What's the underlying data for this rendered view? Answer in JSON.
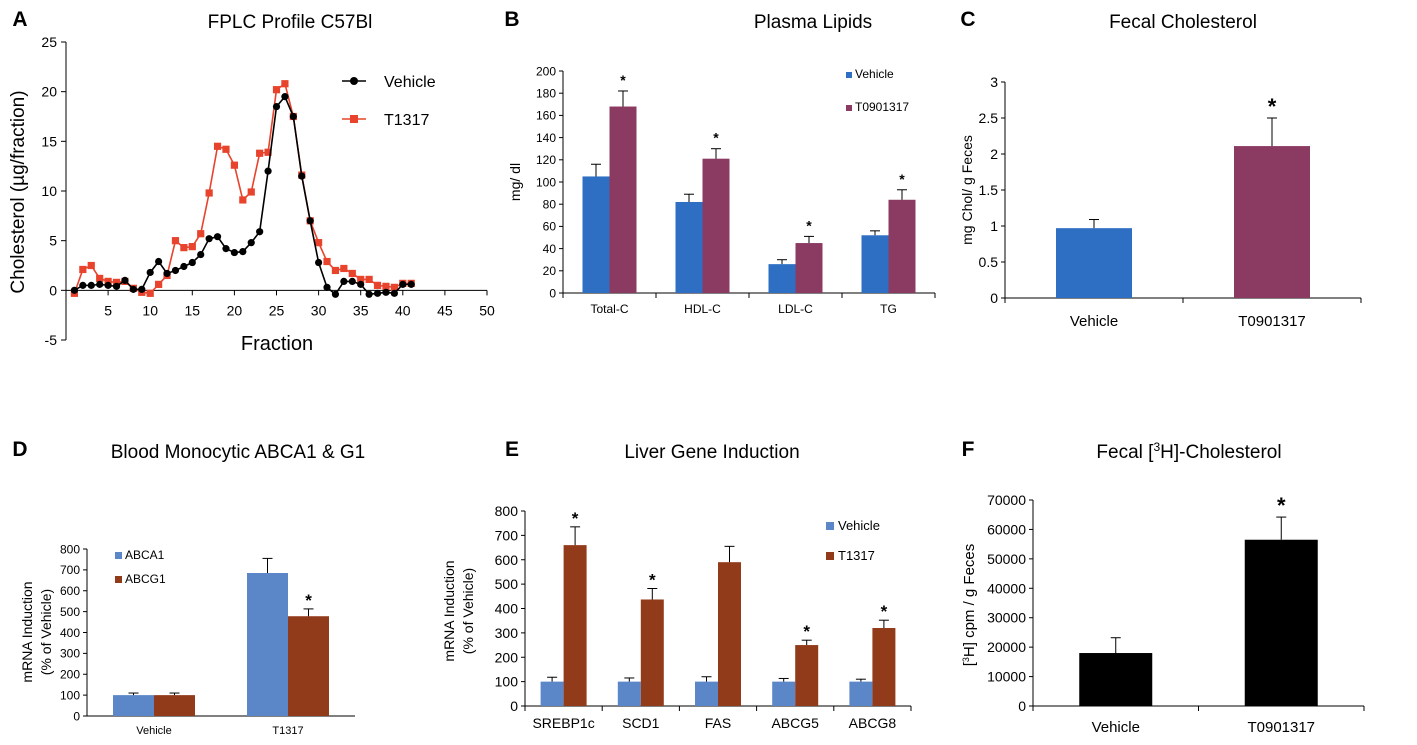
{
  "colors": {
    "black": "#000000",
    "red": "#e8432c",
    "blue": "#2e6fc4",
    "purple": "#8b3a62",
    "lightblue": "#5b86c8",
    "brown": "#923b1b"
  },
  "chart_data": [
    {
      "panel": "A",
      "type": "line",
      "title": "FPLC Profile C57Bl",
      "xlabel": "Fraction",
      "ylabel": "Cholesterol (µg/fraction)",
      "xlim": [
        0,
        50
      ],
      "ylim": [
        -5,
        25
      ],
      "xticks": [
        5,
        10,
        15,
        20,
        25,
        30,
        35,
        40,
        45,
        50
      ],
      "yticks": [
        -5,
        0,
        5,
        10,
        15,
        20,
        25
      ],
      "legend_position": "top-right",
      "series": [
        {
          "name": "Vehicle",
          "color": "black",
          "marker": "circle",
          "x": [
            1,
            2,
            3,
            4,
            5,
            6,
            7,
            8,
            9,
            10,
            11,
            12,
            13,
            14,
            15,
            16,
            17,
            18,
            19,
            20,
            21,
            22,
            23,
            24,
            25,
            26,
            27,
            28,
            29,
            30,
            31,
            32,
            33,
            34,
            35,
            36,
            37,
            38,
            39,
            40,
            41
          ],
          "y": [
            0,
            0.5,
            0.5,
            0.6,
            0.5,
            0.4,
            1,
            0.1,
            0.1,
            1.8,
            2.9,
            1.7,
            2.0,
            2.4,
            2.8,
            3.6,
            5.2,
            5.4,
            4.2,
            3.8,
            3.9,
            4.8,
            5.9,
            12,
            18.5,
            19.5,
            17.5,
            11.5,
            7.0,
            2.8,
            0.3,
            -0.4,
            0.9,
            0.9,
            0.6,
            -0.4,
            -0.3,
            -0.2,
            -0.3,
            0.6,
            0.6
          ]
        },
        {
          "name": "T1317",
          "color": "red",
          "marker": "square",
          "x": [
            1,
            2,
            3,
            4,
            5,
            6,
            7,
            8,
            9,
            10,
            11,
            12,
            13,
            14,
            15,
            16,
            17,
            18,
            19,
            20,
            21,
            22,
            23,
            24,
            25,
            26,
            27,
            28,
            29,
            30,
            31,
            32,
            33,
            34,
            35,
            36,
            37,
            38,
            39,
            40,
            41
          ],
          "y": [
            -0.3,
            2.1,
            2.5,
            1.2,
            0.9,
            0.8,
            0.9,
            0.2,
            -0.2,
            -0.3,
            0.6,
            1.5,
            5.0,
            4.3,
            4.4,
            5.7,
            9.8,
            14.5,
            14.2,
            12.6,
            9.1,
            9.9,
            13.8,
            13.9,
            20.2,
            20.8,
            17.5,
            11.6,
            7.0,
            4.8,
            2.9,
            2.0,
            2.2,
            1.7,
            1.1,
            1.1,
            0.5,
            0.4,
            0.3,
            0.7,
            0.7
          ]
        }
      ]
    },
    {
      "panel": "B",
      "type": "bar",
      "title": "Plasma Lipids",
      "ylabel": "mg/ dl",
      "categories": [
        "Total-C",
        "HDL-C",
        "LDL-C",
        "TG"
      ],
      "ylim": [
        0,
        200
      ],
      "yticks": [
        0,
        20,
        40,
        60,
        80,
        100,
        120,
        140,
        160,
        180,
        200
      ],
      "legend_position": "top-right",
      "series": [
        {
          "name": "Vehicle",
          "color": "blue",
          "values": [
            105,
            82,
            26,
            52
          ],
          "errors": [
            11,
            7,
            4,
            4
          ]
        },
        {
          "name": "T0901317",
          "color": "purple",
          "values": [
            168,
            121,
            45,
            84
          ],
          "errors": [
            14,
            9,
            6,
            9
          ]
        }
      ],
      "significance": [
        "*",
        "*",
        "*",
        "*"
      ]
    },
    {
      "panel": "C",
      "type": "bar",
      "title": "Fecal Cholesterol",
      "ylabel": "mg Chol/ g Feces",
      "categories": [
        "Vehicle",
        "T0901317"
      ],
      "ylim": [
        0,
        3
      ],
      "yticks": [
        0,
        0.5,
        1,
        1.5,
        2,
        2.5,
        3
      ],
      "values": [
        0.97,
        2.11
      ],
      "errors": [
        0.12,
        0.39
      ],
      "bar_colors": [
        "blue",
        "purple"
      ],
      "significance": [
        "",
        "*"
      ]
    },
    {
      "panel": "D",
      "type": "bar",
      "title": "Blood Monocytic ABCA1 & G1",
      "ylabel": "mRNA Induction (% of Vehicle)",
      "ylabel_lines": [
        "mRNA Induction",
        "(% of Vehicle)"
      ],
      "categories": [
        "Vehicle",
        "T1317"
      ],
      "ylim": [
        0,
        800
      ],
      "yticks": [
        0,
        100,
        200,
        300,
        400,
        500,
        600,
        700,
        800
      ],
      "legend_position": "top-left",
      "series": [
        {
          "name": "ABCA1",
          "color": "lightblue",
          "values": [
            100,
            685
          ],
          "errors": [
            10,
            70
          ]
        },
        {
          "name": "ABCG1",
          "color": "brown",
          "values": [
            100,
            478
          ],
          "errors": [
            10,
            35
          ]
        }
      ],
      "significance": [
        "",
        "*"
      ]
    },
    {
      "panel": "E",
      "type": "bar",
      "title": "Liver Gene Induction",
      "ylabel": "mRNA Induction (% of Vehicle)",
      "ylabel_lines": [
        "mRNA Induction",
        "(% of Vehicle)"
      ],
      "categories": [
        "SREBP1c",
        "SCD1",
        "FAS",
        "ABCG5",
        "ABCG8"
      ],
      "ylim": [
        0,
        800
      ],
      "yticks": [
        0,
        100,
        200,
        300,
        400,
        500,
        600,
        700,
        800
      ],
      "legend_position": "top-right",
      "series": [
        {
          "name": "Vehicle",
          "color": "lightblue",
          "values": [
            100,
            100,
            100,
            100,
            100
          ],
          "errors": [
            18,
            15,
            20,
            13,
            10
          ]
        },
        {
          "name": "T1317",
          "color": "brown",
          "values": [
            660,
            437,
            590,
            250,
            320
          ],
          "errors": [
            75,
            45,
            65,
            20,
            32
          ]
        }
      ],
      "significance": [
        "*",
        "*",
        "",
        "*",
        "*"
      ]
    },
    {
      "panel": "F",
      "type": "bar",
      "title_pre": "Fecal [",
      "title_sup": "3",
      "title_post": "H]-Cholesterol",
      "ylabel_pre": "[",
      "ylabel_sup": "3",
      "ylabel_post": "H] cpm / g Feces",
      "categories": [
        "Vehicle",
        "T0901317"
      ],
      "ylim": [
        0,
        70000
      ],
      "yticks": [
        0,
        10000,
        20000,
        30000,
        40000,
        50000,
        60000,
        70000
      ],
      "values": [
        18000,
        56500
      ],
      "errors": [
        5200,
        7700
      ],
      "bar_colors": [
        "black",
        "black"
      ],
      "significance": [
        "",
        "*"
      ]
    }
  ],
  "panel_letters": [
    "A",
    "B",
    "C",
    "D",
    "E",
    "F"
  ]
}
